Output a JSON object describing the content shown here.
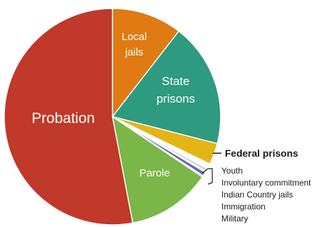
{
  "chart_data": {
    "type": "pie",
    "title": "",
    "start_angle_deg": 0,
    "direction": "clockwise",
    "slices": [
      {
        "label": "Local jails",
        "value": 10.5,
        "color": "#e07a12"
      },
      {
        "label": "State prisons",
        "value": 18.5,
        "color": "#2e9a7f"
      },
      {
        "label": "Federal prisons",
        "value": 3.2,
        "color": "#e3b416"
      },
      {
        "label": "Youth",
        "value": 0.8,
        "color": "#ffffff"
      },
      {
        "label": "Involuntary commitment",
        "value": 0.4,
        "color": "#c9c9d6"
      },
      {
        "label": "Indian Country jails",
        "value": 0.2,
        "color": "#9aa0c8"
      },
      {
        "label": "Immigration",
        "value": 0.6,
        "color": "#5f6aa8"
      },
      {
        "label": "Military",
        "value": 0.2,
        "color": "#3e4a88"
      },
      {
        "label": "Parole",
        "value": 12.6,
        "color": "#7ab648"
      },
      {
        "label": "Probation",
        "value": 53.0,
        "color": "#c0392b"
      }
    ],
    "labels": {
      "local_jails": [
        "Local",
        "jails"
      ],
      "state_prisons": [
        "State",
        "prisons"
      ],
      "federal_prisons": "Federal prisons",
      "parole": "Parole",
      "probation": "Probation",
      "small_group": [
        "Youth",
        "Involuntary commitment",
        "Indian Country jails",
        "Immigration",
        "Military"
      ]
    }
  }
}
